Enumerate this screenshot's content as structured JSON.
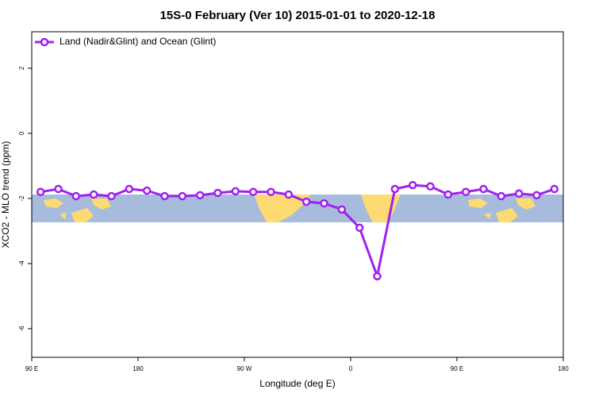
{
  "chart_data": {
    "type": "line",
    "title": "15S-0 February (Ver 10)   2015-01-01 to 2020-12-18",
    "x_label": "Longitude (deg E)",
    "y_label": "XCO2 - MLO trend (ppm)",
    "x": [
      97.5,
      112.5,
      127.5,
      142.5,
      157.5,
      172.5,
      187.5,
      202.5,
      217.5,
      232.5,
      247.5,
      262.5,
      277.5,
      292.5,
      307.5,
      322.5,
      337.5,
      352.5,
      367.5,
      382.5,
      397.5,
      412.5,
      427.5,
      442.5,
      457.5,
      472.5,
      487.5,
      502.5,
      517.5,
      532.5
    ],
    "series": [
      {
        "name": "Land (Nadir&Glint) and Ocean (Glint)",
        "color": "#a020f0",
        "values": [
          -1.8,
          -1.71,
          -1.93,
          -1.88,
          -1.93,
          -1.71,
          -1.76,
          -1.93,
          -1.93,
          -1.9,
          -1.83,
          -1.78,
          -1.8,
          -1.8,
          -1.88,
          -2.1,
          -2.15,
          -2.34,
          -2.9,
          -4.39,
          -1.71,
          -1.59,
          -1.63,
          -1.88,
          -1.8,
          -1.71,
          -1.93,
          -1.85,
          -1.9,
          -1.71
        ]
      }
    ],
    "xlim": [
      90,
      540
    ],
    "xticks": [
      {
        "value": 90,
        "label": "90 E"
      },
      {
        "value": 180,
        "label": "180"
      },
      {
        "value": 270,
        "label": "90 W"
      },
      {
        "value": 360,
        "label": "0"
      },
      {
        "value": 450,
        "label": "90 E"
      },
      {
        "value": 540,
        "label": "180"
      }
    ],
    "ylim": [
      -6.88,
      3.12
    ],
    "yticks": [
      -6,
      -4,
      -2,
      0,
      2
    ],
    "legend": "top-left"
  }
}
